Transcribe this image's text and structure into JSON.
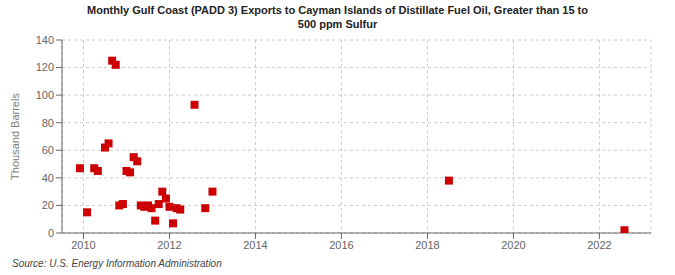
{
  "chart_data": {
    "type": "scatter",
    "title": "Monthly Gulf Coast (PADD 3) Exports to Cayman Islands of Distillate Fuel Oil, Greater than 15 to\n500 ppm Sulfur",
    "ylabel": "Thousand Barrels",
    "annotations": [
      "Source: U.S. Energy Information Administration"
    ],
    "x": [
      2009.917,
      2010.083,
      2010.25,
      2010.333,
      2010.5,
      2010.583,
      2010.667,
      2010.75,
      2010.833,
      2010.917,
      2011.0,
      2011.083,
      2011.167,
      2011.25,
      2011.333,
      2011.417,
      2011.5,
      2011.583,
      2011.667,
      2011.75,
      2011.833,
      2011.917,
      2012.0,
      2012.083,
      2012.167,
      2012.25,
      2012.583,
      2012.833,
      2013.0,
      2018.5,
      2022.583
    ],
    "values": [
      47,
      15,
      47,
      45,
      62,
      65,
      125,
      122,
      20,
      21,
      45,
      44,
      55,
      52,
      20,
      19,
      20,
      18,
      9,
      21,
      30,
      25,
      19,
      7,
      18,
      17,
      93,
      18,
      30,
      38,
      2
    ],
    "color": "#cc0000",
    "marker": "square",
    "xlim": [
      2009.5,
      2023.2
    ],
    "ylim": [
      0,
      140
    ],
    "xticks": [
      2010,
      2012,
      2014,
      2016,
      2018,
      2020,
      2022
    ],
    "yticks": [
      0,
      20,
      40,
      60,
      80,
      100,
      120,
      140
    ],
    "grid": true
  }
}
